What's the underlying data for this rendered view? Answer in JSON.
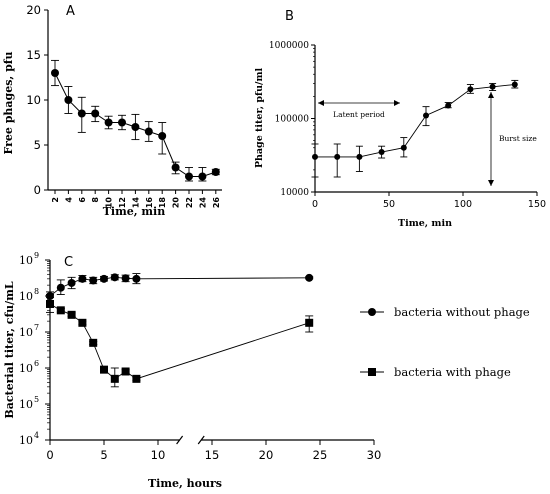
{
  "chart_data": [
    {
      "panel_label": "A",
      "type": "line",
      "ylabel": "Free phages, pfu",
      "xlabel": "Time, min",
      "ylim": [
        0,
        20
      ],
      "yticks": [
        "0",
        "5",
        "10",
        "15",
        "20"
      ],
      "x": [
        2,
        4,
        6,
        8,
        10,
        12,
        14,
        16,
        18,
        20,
        22,
        24,
        26
      ],
      "xtick_labels": [
        "2",
        "4",
        "6",
        "8",
        "10",
        "12",
        "14",
        "16",
        "18",
        "20",
        "22",
        "24",
        "26"
      ],
      "values": [
        13,
        10,
        8.5,
        8.5,
        7.5,
        7.5,
        7,
        6.5,
        6,
        2.5,
        1.5,
        1.5,
        2
      ],
      "err_high": [
        14.4,
        11.5,
        10.3,
        9.3,
        8.2,
        8.3,
        8.4,
        7.6,
        7.5,
        3.1,
        2.5,
        2.5,
        2.3
      ],
      "err_low": [
        11.6,
        8.5,
        6.4,
        7.6,
        6.8,
        6.7,
        5.6,
        5.4,
        4.0,
        1.8,
        1.0,
        1.0,
        1.7
      ],
      "grid": false
    },
    {
      "panel_label": "B",
      "type": "line",
      "ylabel": "Phage titer, pfu/ml",
      "xlabel": "Time, min",
      "yscale": "log",
      "ylim": [
        10000,
        1000000
      ],
      "yticks": [
        "10000",
        "100000",
        "1000000"
      ],
      "xlim": [
        0,
        150
      ],
      "xticks": [
        "0",
        "50",
        "100",
        "150"
      ],
      "x": [
        0,
        15,
        30,
        45,
        60,
        75,
        90,
        105,
        120,
        135
      ],
      "values": [
        30000,
        30000,
        30000,
        35000,
        40000,
        110000,
        150000,
        250000,
        270000,
        290000
      ],
      "err_high": [
        45000,
        45000,
        42000,
        42000,
        55000,
        145000,
        165000,
        290000,
        300000,
        330000
      ],
      "err_low": [
        16000,
        16000,
        19000,
        29000,
        30000,
        80000,
        140000,
        220000,
        240000,
        260000
      ],
      "annotations": {
        "latent_period": "Latent period",
        "burst_size": "Burst size"
      },
      "grid": false
    },
    {
      "panel_label": "C",
      "type": "line",
      "ylabel": "Bacterial titer, cfu/mL",
      "xlabel": "Time, hours",
      "yscale": "log",
      "ylim": [
        10000,
        1000000000
      ],
      "ytick_exponents": [
        "4",
        "5",
        "6",
        "7",
        "8",
        "9"
      ],
      "ytick_base": "10",
      "xlim": [
        0,
        30
      ],
      "xticks": [
        "0",
        "5",
        "10",
        "15",
        "20",
        "25",
        "30"
      ],
      "axis_break": [
        12,
        14
      ],
      "series": [
        {
          "name": "bacteria without phage",
          "marker": "circle",
          "x": [
            0,
            1,
            2,
            3,
            4,
            5,
            6,
            7,
            8,
            24
          ],
          "values": [
            100000000,
            170000000,
            230000000,
            300000000,
            270000000,
            300000000,
            330000000,
            310000000,
            300000000,
            320000000
          ],
          "err_high": [
            110000000,
            280000000,
            330000000,
            370000000,
            330000000,
            350000000,
            390000000,
            380000000,
            420000000,
            340000000
          ],
          "err_low": [
            90000000,
            110000000,
            160000000,
            250000000,
            220000000,
            260000000,
            280000000,
            250000000,
            220000000,
            300000000
          ]
        },
        {
          "name": "bacteria with phage",
          "marker": "square",
          "x": [
            0,
            1,
            2,
            3,
            4,
            5,
            6,
            7,
            8,
            24
          ],
          "values": [
            60000000,
            40000000,
            30000000,
            18000000,
            5000000,
            900000,
            500000,
            800000,
            500000,
            18000000
          ],
          "err_high": [
            130000000,
            45000000,
            34000000,
            20000000,
            5500000,
            1000000,
            1000000,
            900000,
            550000,
            28000000
          ],
          "err_low": [
            35000000,
            36000000,
            27000000,
            16000000,
            4500000,
            800000,
            300000,
            700000,
            450000,
            10000000
          ]
        }
      ],
      "grid": false
    }
  ]
}
